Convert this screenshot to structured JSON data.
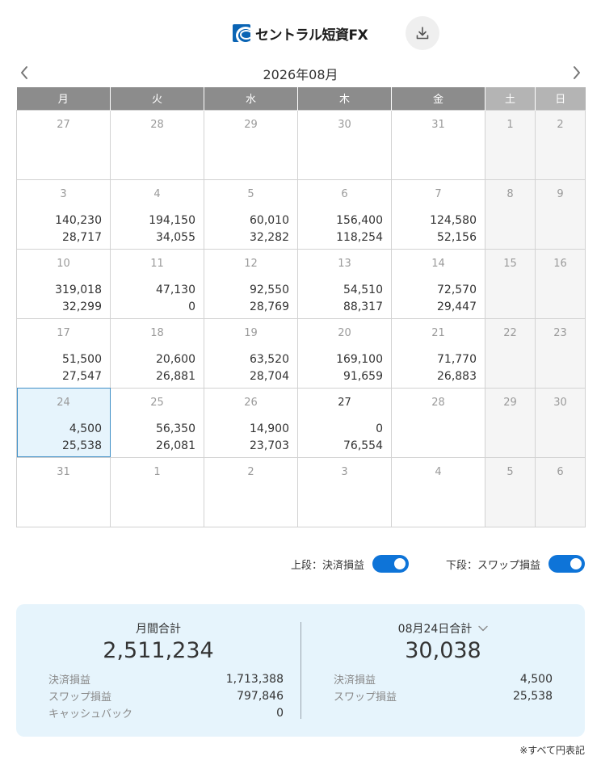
{
  "header": {
    "logo_text": "セントラル短資FX",
    "download_icon": "download-icon"
  },
  "month_nav": {
    "title": "2026年08月",
    "prev_icon": "chevron-left-icon",
    "next_icon": "chevron-right-icon"
  },
  "calendar": {
    "weekdays": [
      "月",
      "火",
      "水",
      "木",
      "金",
      "土",
      "日"
    ],
    "weeks": [
      [
        {
          "day": "27",
          "upper": "",
          "lower": ""
        },
        {
          "day": "28",
          "upper": "",
          "lower": ""
        },
        {
          "day": "29",
          "upper": "",
          "lower": ""
        },
        {
          "day": "30",
          "upper": "",
          "lower": ""
        },
        {
          "day": "31",
          "upper": "",
          "lower": ""
        },
        {
          "day": "1",
          "upper": "",
          "lower": ""
        },
        {
          "day": "2",
          "upper": "",
          "lower": ""
        }
      ],
      [
        {
          "day": "3",
          "upper": "140,230",
          "lower": "28,717"
        },
        {
          "day": "4",
          "upper": "194,150",
          "lower": "34,055"
        },
        {
          "day": "5",
          "upper": "60,010",
          "lower": "32,282"
        },
        {
          "day": "6",
          "upper": "156,400",
          "lower": "118,254"
        },
        {
          "day": "7",
          "upper": "124,580",
          "lower": "52,156"
        },
        {
          "day": "8",
          "upper": "",
          "lower": ""
        },
        {
          "day": "9",
          "upper": "",
          "lower": ""
        }
      ],
      [
        {
          "day": "10",
          "upper": "319,018",
          "lower": "32,299"
        },
        {
          "day": "11",
          "upper": "47,130",
          "lower": "0"
        },
        {
          "day": "12",
          "upper": "92,550",
          "lower": "28,769"
        },
        {
          "day": "13",
          "upper": "54,510",
          "lower": "88,317"
        },
        {
          "day": "14",
          "upper": "72,570",
          "lower": "29,447"
        },
        {
          "day": "15",
          "upper": "",
          "lower": ""
        },
        {
          "day": "16",
          "upper": "",
          "lower": ""
        }
      ],
      [
        {
          "day": "17",
          "upper": "51,500",
          "lower": "27,547"
        },
        {
          "day": "18",
          "upper": "20,600",
          "lower": "26,881"
        },
        {
          "day": "19",
          "upper": "63,520",
          "lower": "28,704"
        },
        {
          "day": "20",
          "upper": "169,100",
          "lower": "91,659"
        },
        {
          "day": "21",
          "upper": "71,770",
          "lower": "26,883"
        },
        {
          "day": "22",
          "upper": "",
          "lower": ""
        },
        {
          "day": "23",
          "upper": "",
          "lower": ""
        }
      ],
      [
        {
          "day": "24",
          "upper": "4,500",
          "lower": "25,538"
        },
        {
          "day": "25",
          "upper": "56,350",
          "lower": "26,081"
        },
        {
          "day": "26",
          "upper": "14,900",
          "lower": "23,703"
        },
        {
          "day": "27",
          "upper": "0",
          "lower": "76,554"
        },
        {
          "day": "28",
          "upper": "",
          "lower": ""
        },
        {
          "day": "29",
          "upper": "",
          "lower": ""
        },
        {
          "day": "30",
          "upper": "",
          "lower": ""
        }
      ],
      [
        {
          "day": "31",
          "upper": "",
          "lower": ""
        },
        {
          "day": "1",
          "upper": "",
          "lower": ""
        },
        {
          "day": "2",
          "upper": "",
          "lower": ""
        },
        {
          "day": "3",
          "upper": "",
          "lower": ""
        },
        {
          "day": "4",
          "upper": "",
          "lower": ""
        },
        {
          "day": "5",
          "upper": "",
          "lower": ""
        },
        {
          "day": "6",
          "upper": "",
          "lower": ""
        }
      ]
    ]
  },
  "toggles": {
    "upper_label": "上段：決済損益",
    "lower_label": "下段：スワップ損益"
  },
  "summary": {
    "monthly": {
      "title": "月間合計",
      "total": "2,511,234",
      "rows": [
        {
          "label": "決済損益",
          "value": "1,713,388"
        },
        {
          "label": "スワップ損益",
          "value": "797,846"
        },
        {
          "label": "キャッシュバック",
          "value": "0"
        }
      ]
    },
    "daily": {
      "title": "08月24日合計",
      "total": "30,038",
      "rows": [
        {
          "label": "決済損益",
          "value": "4,500"
        },
        {
          "label": "スワップ損益",
          "value": "25,538"
        }
      ]
    }
  },
  "footnote": "※すべて円表記",
  "colors": {
    "header_weekday": "#8c8c8c",
    "header_weekend": "#b4b4b4",
    "weekend_cell": "#f5f5f5",
    "selected_cell": "#e6f4fc",
    "selected_border": "#3f8fc7",
    "toggle_on": "#0e74d8",
    "summary_bg": "#e6f4fc"
  }
}
